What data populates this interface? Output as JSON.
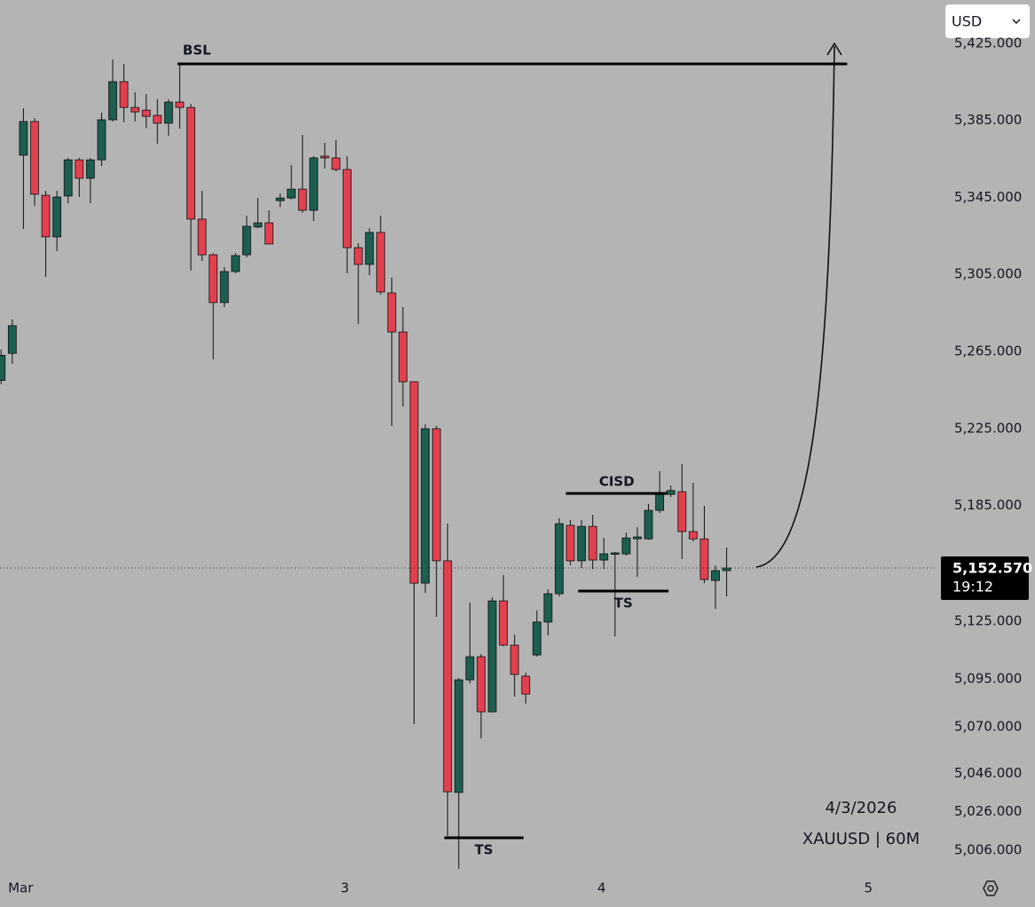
{
  "chart_data": {
    "type": "candlestick",
    "symbol_info": "XAUUSD | 60M",
    "date": "4/3/2026",
    "currency": "USD",
    "up_color": "#1c5e50",
    "down_color": "#e2404f",
    "x": [
      0,
      1,
      2,
      3,
      4,
      5,
      6,
      7,
      8,
      9,
      10,
      11,
      12,
      13,
      14,
      15,
      16,
      17,
      18,
      19,
      20,
      21,
      22,
      23,
      24,
      25,
      26,
      27,
      28,
      29,
      30,
      31,
      32,
      33,
      34,
      35,
      36,
      37,
      38,
      39,
      40,
      41,
      42,
      43,
      44,
      45,
      46,
      47,
      48,
      49,
      50,
      51,
      52,
      53,
      54,
      55,
      56,
      57,
      58,
      59,
      60,
      61,
      62,
      63,
      64,
      65
    ],
    "open": [
      5250,
      5264,
      5366.9,
      5384.4,
      5346.1,
      5324.5,
      5345.7,
      5364.5,
      5354.9,
      5364.5,
      5385.3,
      5405.1,
      5391.7,
      5390.3,
      5387.6,
      5383.5,
      5394.5,
      5391.7,
      5333.7,
      5315.2,
      5290.4,
      5306.5,
      5315.2,
      5329.6,
      5331.8,
      5343.3,
      5344.7,
      5349.3,
      5338.3,
      5366.4,
      5365.5,
      5359.5,
      5318.9,
      5310.2,
      5326.8,
      5295.4,
      5275.1,
      5249.3,
      5144.7,
      5224.9,
      5156.3,
      5036,
      5094.5,
      5106.5,
      5077.9,
      5135.5,
      5112.5,
      5096.4,
      5107.4,
      5124.5,
      5139.2,
      5174.7,
      5156.3,
      5174.2,
      5156.7,
      5159.9,
      5159.9,
      5167.7,
      5167.7,
      5182.5,
      5190.8,
      5192.2,
      5171.5,
      5167.7,
      5146.1,
      5151.2
    ],
    "high": [
      5266,
      5281.6,
      5391.3,
      5386.2,
      5348.4,
      5348.4,
      5365.5,
      5365.5,
      5365.5,
      5389,
      5416.6,
      5414.3,
      5399.6,
      5398.6,
      5396,
      5396,
      5413.9,
      5393.6,
      5348.4,
      5316,
      5308.8,
      5316.2,
      5335.5,
      5344.7,
      5338.3,
      5347,
      5361.8,
      5377.5,
      5366.4,
      5373.3,
      5374.7,
      5366.4,
      5321.2,
      5329,
      5335.5,
      5303.3,
      5288.1,
      5249.3,
      5227.2,
      5226.3,
      5175.6,
      5095.4,
      5134.6,
      5107.9,
      5137.4,
      5148.9,
      5118,
      5098.2,
      5130.5,
      5141.5,
      5178.4,
      5177.5,
      5177.5,
      5180.2,
      5168.2,
      5160.9,
      5171,
      5173.8,
      5185.8,
      5202.8,
      5195.4,
      5206.5,
      5196.8,
      5184.8,
      5153.9,
      5163.2
    ],
    "low": [
      5248,
      5258.6,
      5328.6,
      5340.6,
      5303.7,
      5317.1,
      5342,
      5345.2,
      5342,
      5361.3,
      5384.4,
      5384,
      5384.4,
      5381,
      5372.8,
      5377,
      5380.7,
      5307,
      5312,
      5260.9,
      5288,
      5305.5,
      5313.9,
      5329,
      5320.8,
      5340,
      5344,
      5337,
      5332.7,
      5360,
      5358.6,
      5305.6,
      5279.3,
      5304.6,
      5294.5,
      5226.3,
      5236.4,
      5071.5,
      5139.7,
      5127.2,
      5013.4,
      4996.3,
      5092.7,
      5064.1,
      5077.5,
      5112,
      5085.8,
      5082.1,
      5106.6,
      5117.6,
      5137.8,
      5154,
      5152.6,
      5152,
      5152,
      5117.1,
      5159,
      5148,
      5167.2,
      5181.1,
      5189.4,
      5157.2,
      5166.4,
      5144.7,
      5131.4,
      5137.8
    ],
    "close": [
      5263,
      5278.4,
      5384.4,
      5346.6,
      5324.5,
      5345.2,
      5364.5,
      5354.9,
      5364.5,
      5385.3,
      5405.1,
      5391.7,
      5389.4,
      5387.1,
      5383.5,
      5394.5,
      5391.7,
      5333.7,
      5315.2,
      5290.4,
      5306.5,
      5314.8,
      5330,
      5331.8,
      5320.8,
      5344.7,
      5349.3,
      5338.3,
      5365.5,
      5365.5,
      5359.5,
      5318.9,
      5310.2,
      5326.8,
      5295.9,
      5275.1,
      5249.3,
      5144.7,
      5224.9,
      5156.3,
      5036.4,
      5094.5,
      5106.5,
      5077.9,
      5135.5,
      5112.5,
      5097.3,
      5087.1,
      5124.5,
      5139.2,
      5175.6,
      5156.3,
      5174.2,
      5156.7,
      5159.9,
      5160.4,
      5168.2,
      5168.7,
      5182.5,
      5191.3,
      5192.8,
      5171.5,
      5167.7,
      5146.6,
      5151.2,
      5152.57
    ],
    "xlim": [
      -0.1,
      83.8
    ],
    "ylim": [
      4993.6,
      5447.5
    ],
    "xticks": [
      {
        "value": 1.75,
        "label": "Mar"
      },
      {
        "value": 30.8,
        "label": "3"
      },
      {
        "value": 53.8,
        "label": "4"
      },
      {
        "value": 77.7,
        "label": "5"
      }
    ],
    "yticks": [
      {
        "value": 5425,
        "label": "5,425.000"
      },
      {
        "value": 5385,
        "label": "5,385.000"
      },
      {
        "value": 5345,
        "label": "5,345.000"
      },
      {
        "value": 5305,
        "label": "5,305.000"
      },
      {
        "value": 5265,
        "label": "5,265.000"
      },
      {
        "value": 5225,
        "label": "5,225.000"
      },
      {
        "value": 5185,
        "label": "5,185.000"
      },
      {
        "value": 5125,
        "label": "5,125.000"
      },
      {
        "value": 5095,
        "label": "5,095.000"
      },
      {
        "value": 5070,
        "label": "5,070.000"
      },
      {
        "value": 5046,
        "label": "5,046.000"
      },
      {
        "value": 5026,
        "label": "5,026.000"
      },
      {
        "value": 5006,
        "label": "5,006.000"
      }
    ],
    "last_price": {
      "value": 5152.57,
      "label": "5,152.570"
    },
    "countdown": "19:12",
    "annotations": [
      {
        "text": "BSL",
        "value": 5414.3,
        "x": [
          15.8,
          75.8
        ],
        "placement": "above-left"
      },
      {
        "text": "CISD",
        "value": 5191.3,
        "x": [
          50.6,
          59.7
        ],
        "placement": "above"
      },
      {
        "text": "TS",
        "value": 5140.6,
        "x": [
          51.7,
          59.8
        ],
        "placement": "below"
      },
      {
        "text": "TS",
        "value": 5012.5,
        "x": [
          39.7,
          46.8
        ],
        "placement": "below"
      }
    ]
  }
}
